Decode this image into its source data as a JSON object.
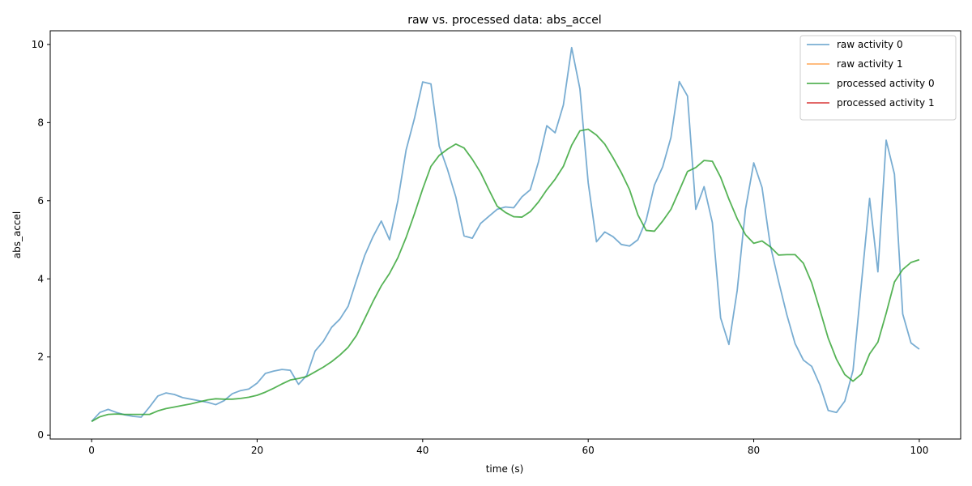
{
  "chart_data": {
    "type": "line",
    "title": "raw vs. processed data: abs_accel",
    "xlabel": "time (s)",
    "ylabel": "abs_accel",
    "xlim": [
      -5,
      105
    ],
    "ylim": [
      -0.1,
      10.35
    ],
    "xticks": [
      0,
      20,
      40,
      60,
      80,
      100
    ],
    "yticks": [
      0,
      2,
      4,
      6,
      8,
      10
    ],
    "grid": false,
    "legend_position": "top-right",
    "series": [
      {
        "name": "raw activity 0",
        "color": "#1f77b4",
        "opacity": 0.6,
        "x": [
          0,
          1,
          2,
          3,
          4,
          5,
          6,
          7,
          8,
          9,
          10,
          11,
          12,
          13,
          14,
          15,
          16,
          17,
          18,
          19,
          20,
          21,
          22,
          23,
          24,
          25,
          26,
          27,
          28,
          29,
          30,
          31,
          32,
          33,
          34,
          35,
          36,
          37,
          38,
          39,
          40,
          41,
          42,
          43,
          44,
          45,
          46,
          47,
          48,
          49,
          50,
          51,
          52,
          53,
          54,
          55,
          56,
          57,
          58,
          59,
          60,
          61,
          62,
          63,
          64,
          65,
          66,
          67,
          68,
          69,
          70,
          71,
          72,
          73,
          74,
          75,
          76,
          77,
          78,
          79,
          80,
          81,
          82,
          83,
          84,
          85,
          86,
          87,
          88,
          89,
          90,
          91,
          92,
          93,
          94,
          95,
          96,
          97,
          98,
          99,
          100
        ],
        "y": [
          0.35,
          0.58,
          0.66,
          0.58,
          0.52,
          0.48,
          0.46,
          0.72,
          1.0,
          1.08,
          1.04,
          0.96,
          0.92,
          0.88,
          0.84,
          0.78,
          0.88,
          1.06,
          1.14,
          1.18,
          1.33,
          1.58,
          1.64,
          1.68,
          1.66,
          1.3,
          1.53,
          2.15,
          2.4,
          2.76,
          2.97,
          3.3,
          3.96,
          4.6,
          5.08,
          5.48,
          5.0,
          6.0,
          7.3,
          8.1,
          9.04,
          8.99,
          7.4,
          6.8,
          6.1,
          5.1,
          5.04,
          5.42,
          5.6,
          5.78,
          5.84,
          5.82,
          6.1,
          6.28,
          7.0,
          7.92,
          7.74,
          8.45,
          9.92,
          8.86,
          6.46,
          4.95,
          5.2,
          5.08,
          4.88,
          4.84,
          5.0,
          5.5,
          6.4,
          6.87,
          7.62,
          9.05,
          8.68,
          5.78,
          6.36,
          5.44,
          3.0,
          2.32,
          3.7,
          5.78,
          6.97,
          6.34,
          4.86,
          3.94,
          3.08,
          2.34,
          1.92,
          1.76,
          1.28,
          0.63,
          0.58,
          0.87,
          1.66,
          3.86,
          6.06,
          4.18,
          7.55,
          6.68,
          3.1,
          2.36,
          2.2
        ]
      },
      {
        "name": "raw activity 1",
        "color": "#ff7f0e",
        "opacity": 0.6,
        "x": [],
        "y": []
      },
      {
        "name": "processed activity 0",
        "color": "#2ca02c",
        "opacity": 0.8,
        "x": [
          0,
          1,
          2,
          3,
          4,
          5,
          6,
          7,
          8,
          9,
          10,
          11,
          12,
          13,
          14,
          15,
          16,
          17,
          18,
          19,
          20,
          21,
          22,
          23,
          24,
          25,
          26,
          27,
          28,
          29,
          30,
          31,
          32,
          33,
          34,
          35,
          36,
          37,
          38,
          39,
          40,
          41,
          42,
          43,
          44,
          45,
          46,
          47,
          48,
          49,
          50,
          51,
          52,
          53,
          54,
          55,
          56,
          57,
          58,
          59,
          60,
          61,
          62,
          63,
          64,
          65,
          66,
          67,
          68,
          69,
          70,
          71,
          72,
          73,
          74,
          75,
          76,
          77,
          78,
          79,
          80,
          81,
          82,
          83,
          84,
          85,
          86,
          87,
          88,
          89,
          90,
          91,
          92,
          93,
          94,
          95,
          96,
          97,
          98,
          99,
          100
        ],
        "y": [
          0.35,
          0.47,
          0.53,
          0.54,
          0.53,
          0.53,
          0.53,
          0.53,
          0.62,
          0.68,
          0.72,
          0.76,
          0.8,
          0.85,
          0.9,
          0.93,
          0.92,
          0.92,
          0.94,
          0.97,
          1.02,
          1.1,
          1.2,
          1.31,
          1.41,
          1.45,
          1.5,
          1.62,
          1.74,
          1.88,
          2.05,
          2.25,
          2.55,
          2.98,
          3.42,
          3.82,
          4.14,
          4.54,
          5.06,
          5.66,
          6.3,
          6.88,
          7.16,
          7.32,
          7.45,
          7.35,
          7.06,
          6.72,
          6.28,
          5.86,
          5.7,
          5.59,
          5.58,
          5.72,
          5.97,
          6.28,
          6.55,
          6.88,
          7.42,
          7.79,
          7.83,
          7.68,
          7.45,
          7.1,
          6.72,
          6.28,
          5.64,
          5.24,
          5.22,
          5.48,
          5.78,
          6.26,
          6.75,
          6.85,
          7.03,
          7.01,
          6.6,
          6.04,
          5.54,
          5.13,
          4.91,
          4.97,
          4.82,
          4.61,
          4.62,
          4.62,
          4.4,
          3.9,
          3.2,
          2.48,
          1.94,
          1.55,
          1.38,
          1.56,
          2.08,
          2.38,
          3.12,
          3.92,
          4.24,
          4.42,
          4.49
        ]
      },
      {
        "name": "processed activity 1",
        "color": "#d62728",
        "opacity": 0.8,
        "x": [],
        "y": []
      }
    ]
  }
}
